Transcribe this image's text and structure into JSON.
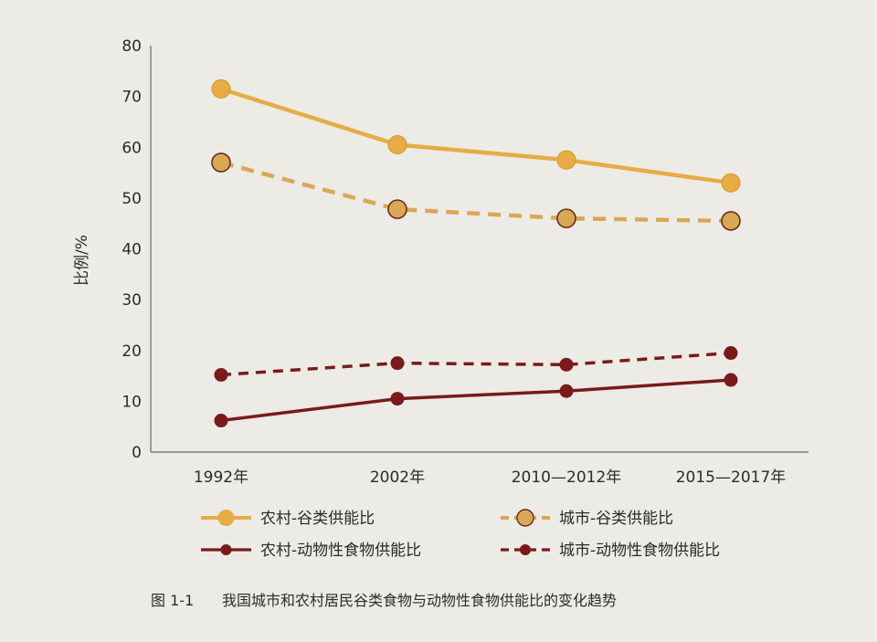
{
  "chart_data": {
    "type": "line",
    "ylabel": "比例/%",
    "ylim": [
      0,
      80
    ],
    "yticks": [
      0,
      10,
      20,
      30,
      40,
      50,
      60,
      70,
      80
    ],
    "categories": [
      "1992年",
      "2002年",
      "2010—2012年",
      "2015—2017年"
    ],
    "grid": false,
    "legend_position": "bottom",
    "series": [
      {
        "name": "农村-谷类供能比",
        "values": [
          71.5,
          60.5,
          57.5,
          53.0
        ],
        "color": "#e6ad45",
        "style": "solid",
        "marker": "large-circle"
      },
      {
        "name": "城市-谷类供能比",
        "values": [
          57.0,
          47.8,
          46.0,
          45.5
        ],
        "color": "#d9a855",
        "style": "dashed",
        "marker": "large-circle-outlined"
      },
      {
        "name": "农村-动物性食物供能比",
        "values": [
          6.2,
          10.5,
          12.0,
          14.2
        ],
        "color": "#7a1a1a",
        "style": "solid",
        "marker": "small-circle"
      },
      {
        "name": "城市-动物性食物供能比",
        "values": [
          15.2,
          17.5,
          17.2,
          19.5
        ],
        "color": "#7a1a1a",
        "style": "dashed",
        "marker": "small-circle"
      }
    ]
  },
  "caption": {
    "number": "图 1-1",
    "text": "我国城市和农村居民谷类食物与动物性食物供能比的变化趋势"
  }
}
